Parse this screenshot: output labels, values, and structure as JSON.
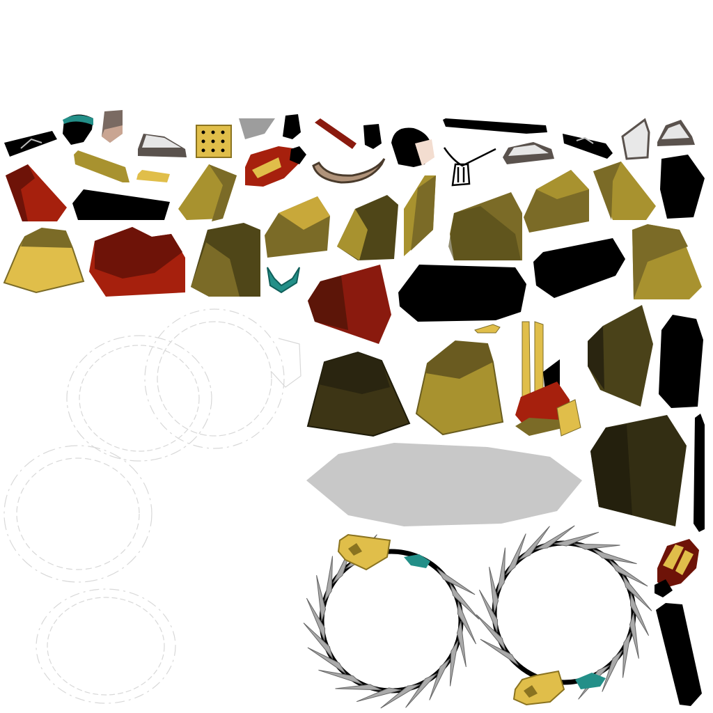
{
  "texture_atlas": {
    "background": "#ffffff",
    "palette": {
      "gold": "#e0be4a",
      "gold_dark": "#a8922f",
      "olive": "#7b6b27",
      "olive_dark": "#4f4618",
      "bronze_dark": "#2e2911",
      "red": "#a6200d",
      "red_dark": "#6e1308",
      "black": "#000000",
      "teal": "#238f88",
      "gray": "#c8c8c8",
      "spike_gray": "#aaaaaa",
      "outline_faint": "#d8d8d8"
    },
    "pieces": [
      "sword-hilt-dark",
      "teal-hood",
      "wrapped-bundle",
      "white-sandal",
      "gold-grid-plate",
      "gray-scrap",
      "black-gem",
      "red-blade-shard",
      "black-bead",
      "red-gauntlet",
      "curled-fur-strip",
      "face-head",
      "black-long-bar",
      "tied-rope",
      "sandal-2",
      "sword-hilt-2",
      "white-sock",
      "white-sandal-3",
      "black-cap",
      "gold-plank",
      "gold-small-plate",
      "red-block",
      "black-bar",
      "olive-block",
      "olive-block-2",
      "olive-block-3",
      "olive-sliver",
      "olive-block-4",
      "olive-block-5",
      "olive-block-6",
      "gold-trapezoid",
      "red-rock",
      "olive-block-7",
      "teal-hook",
      "red-slab",
      "black-rounded",
      "black-slab",
      "olive-block-8",
      "thorn-ring-outline-1",
      "thorn-ring-outline-2",
      "thorn-ring-outline-3",
      "thorn-ring-outline-4",
      "bronze-mound",
      "gold-mound",
      "gold-chip",
      "gold-totem",
      "bronze-slab",
      "black-pillar",
      "gray-disc",
      "bronze-rock",
      "black-strip",
      "thorn-ring-left",
      "thorn-ring-right",
      "red-torch",
      "black-tall-slab"
    ]
  }
}
